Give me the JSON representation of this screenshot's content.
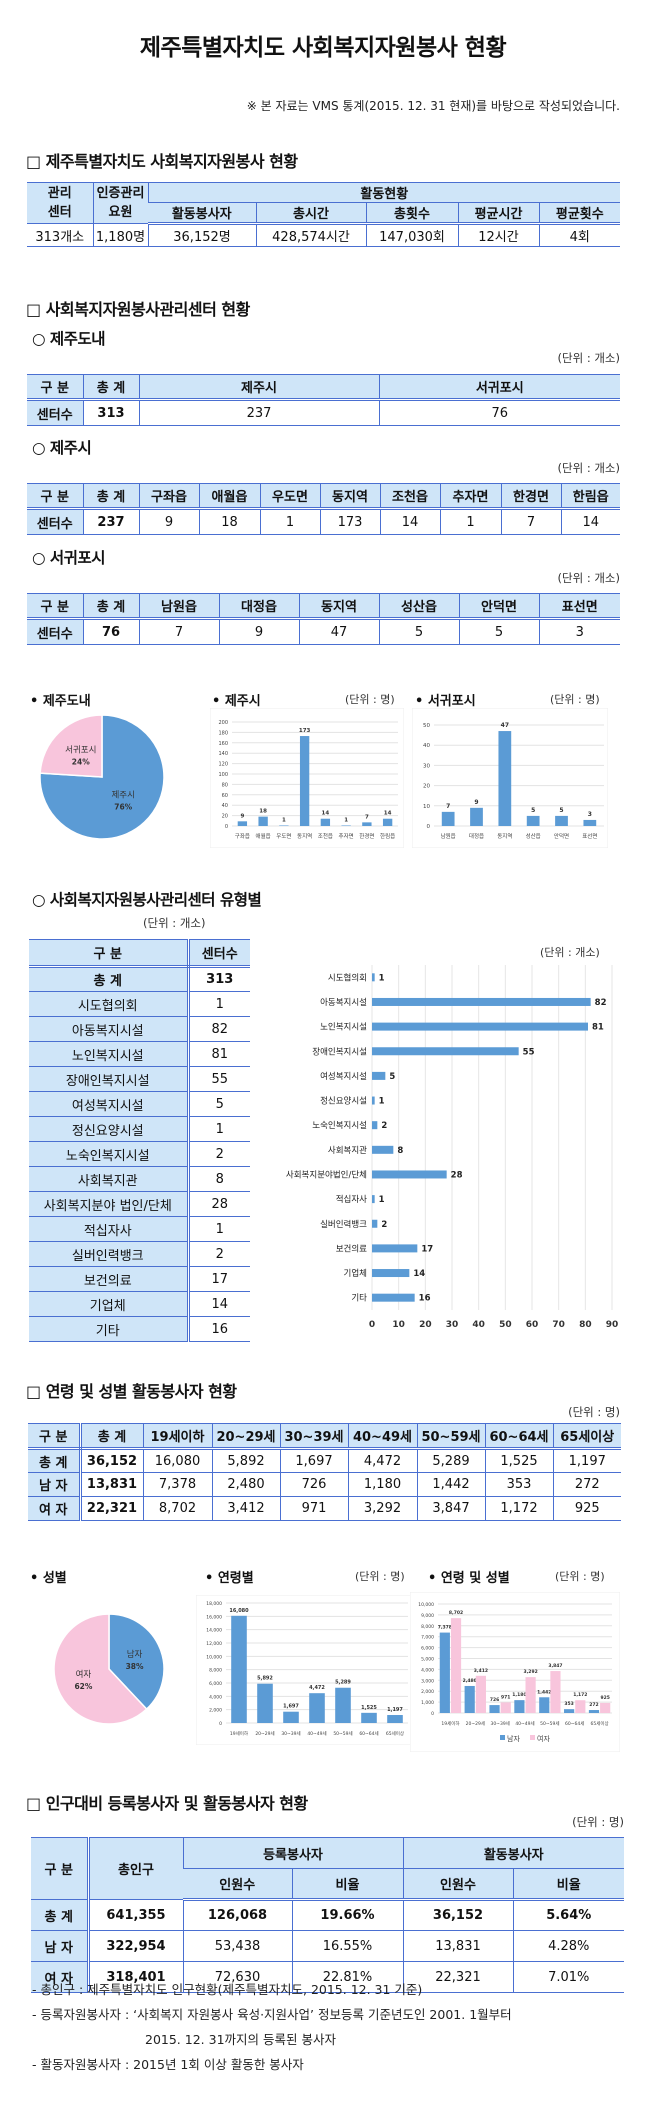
{
  "title": "제주특별자치도 사회복지자원봉사 현황",
  "note": "※ 본 자료는 VMS 통계(2015. 12. 31 현재)를 바탕으로 작성되었습니다.",
  "section1": {
    "heading": "□ 제주특별자치도 사회복지자원봉사 현황",
    "headers": {
      "center": "관리\n센터",
      "staff": "인증관리\n요원",
      "activity": "활동현황",
      "volunteers": "활동봉사자",
      "hours": "총시간",
      "count": "총횟수",
      "avg_hours": "평균시간",
      "avg_count": "평균횟수"
    },
    "values": [
      "313개소",
      "1,180명",
      "36,152명",
      "428,574시간",
      "147,030회",
      "12시간",
      "4회"
    ]
  },
  "section2": {
    "heading": "□ 사회복지자원봉사관리센터 현황",
    "jeju_do": {
      "heading": "○ 제주도내",
      "unit": "(단위 : 개소)",
      "headers": [
        "구 분",
        "총 계",
        "제주시",
        "서귀포시"
      ],
      "row": [
        "센터수",
        "313",
        "237",
        "76"
      ]
    },
    "jeju_si": {
      "heading": "○ 제주시",
      "unit": "(단위 : 개소)",
      "headers": [
        "구 분",
        "총 계",
        "구좌읍",
        "애월읍",
        "우도면",
        "동지역",
        "조천읍",
        "추자면",
        "한경면",
        "한림읍"
      ],
      "row": [
        "센터수",
        "237",
        "9",
        "18",
        "1",
        "173",
        "14",
        "1",
        "7",
        "14"
      ]
    },
    "seogwipo": {
      "heading": "○ 서귀포시",
      "unit": "(단위 : 개소)",
      "headers": [
        "구 분",
        "총 계",
        "남원읍",
        "대정읍",
        "동지역",
        "성산읍",
        "안덕면",
        "표선면"
      ],
      "row": [
        "센터수",
        "76",
        "7",
        "9",
        "47",
        "5",
        "5",
        "3"
      ]
    }
  },
  "section3": {
    "heading": "○ 사회복지자원봉사관리센터 유형별",
    "unit": "(단위 : 개소)",
    "headers": [
      "구    분",
      "센터수"
    ],
    "rows": [
      [
        "총    계",
        "313"
      ],
      [
        "시도협의회",
        "1"
      ],
      [
        "아동복지시설",
        "82"
      ],
      [
        "노인복지시설",
        "81"
      ],
      [
        "장애인복지시설",
        "55"
      ],
      [
        "여성복지시설",
        "5"
      ],
      [
        "정신요양시설",
        "1"
      ],
      [
        "노숙인복지시설",
        "2"
      ],
      [
        "사회복지관",
        "8"
      ],
      [
        "사회복지분야 법인/단체",
        "28"
      ],
      [
        "적십자사",
        "1"
      ],
      [
        "실버인력뱅크",
        "2"
      ],
      [
        "보건의료",
        "17"
      ],
      [
        "기업체",
        "14"
      ],
      [
        "기타",
        "16"
      ]
    ]
  },
  "section4": {
    "heading": "□ 연령 및 성별 활동봉사자 현황",
    "unit": "(단위 : 명)",
    "headers": [
      "구 분",
      "총 계",
      "19세이하",
      "20~29세",
      "30~39세",
      "40~49세",
      "50~59세",
      "60~64세",
      "65세이상"
    ],
    "rows": [
      [
        "총 계",
        "36,152",
        "16,080",
        "5,892",
        "1,697",
        "4,472",
        "5,289",
        "1,525",
        "1,197"
      ],
      [
        "남 자",
        "13,831",
        "7,378",
        "2,480",
        "726",
        "1,180",
        "1,442",
        "353",
        "272"
      ],
      [
        "여 자",
        "22,321",
        "8,702",
        "3,412",
        "971",
        "3,292",
        "3,847",
        "1,172",
        "925"
      ]
    ]
  },
  "section5": {
    "heading": "□ 인구대비 등록봉사자 및 활동봉사자 현황",
    "unit": "(단위 : 명)",
    "headers": {
      "category": "구 분",
      "population": "총인구",
      "registered": "등록봉사자",
      "active": "활동봉사자",
      "count": "인원수",
      "ratio": "비율"
    },
    "rows": [
      [
        "총 계",
        "641,355",
        "126,068",
        "19.66%",
        "36,152",
        "5.64%"
      ],
      [
        "남 자",
        "322,954",
        "53,438",
        "16.55%",
        "13,831",
        "4.28%"
      ],
      [
        "여 자",
        "318,401",
        "72,630",
        "22.81%",
        "22,321",
        "7.01%"
      ]
    ],
    "notes": [
      "- 총인구 : 제주특별자치도 인구현황(제주특별자치도, 2015. 12. 31 기준)",
      "- 등록자원봉사자 : ‘사회복지 자원봉사 육성·지원사업’ 정보등록 기준년도인 2001. 1월부터",
      "2015. 12. 31까지의 등록된 봉사자",
      "- 활동자원봉사자 : 2015년 1회 이상 활동한 봉사자"
    ]
  },
  "colors": {
    "blue": "#5b9bd5",
    "pink": "#f8c5dc",
    "border": "#4a6fd1",
    "header_bg": "#cfe5f8"
  },
  "chart_data": [
    {
      "id": "pie_region",
      "type": "pie",
      "title": "• 제주도내",
      "labels": [
        "제주시",
        "서귀포시"
      ],
      "values": [
        76,
        24
      ],
      "value_labels": [
        "76%",
        "24%"
      ]
    },
    {
      "id": "bar_jeju",
      "type": "bar",
      "title": "• 제주시",
      "unit": "(단위 : 명)",
      "categories": [
        "구좌읍",
        "애월읍",
        "우도면",
        "동지역",
        "조천읍",
        "추자면",
        "한경면",
        "한림읍"
      ],
      "values": [
        9,
        18,
        1,
        173,
        14,
        1,
        7,
        14
      ],
      "ylim": [
        0,
        200
      ],
      "ystep": 20,
      "grid": true
    },
    {
      "id": "bar_seogwipo",
      "type": "bar",
      "title": "• 서귀포시",
      "unit": "(단위 : 명)",
      "categories": [
        "남원읍",
        "대정읍",
        "동지역",
        "성산읍",
        "안덕면",
        "표선면"
      ],
      "values": [
        7,
        9,
        47,
        5,
        5,
        3
      ],
      "ylim": [
        0,
        50
      ],
      "ystep": 10,
      "grid": true
    },
    {
      "id": "hbar_type",
      "type": "bar",
      "orientation": "horizontal",
      "unit": "(단위 : 개소)",
      "categories": [
        "시도협의회",
        "아동복지시설",
        "노인복지시설",
        "장애인복지시설",
        "여성복지시설",
        "정신요양시설",
        "노숙인복지시설",
        "사회복지관",
        "사회복지분야법인/단체",
        "적십자사",
        "실버인력뱅크",
        "보건의료",
        "기업체",
        "기타"
      ],
      "values": [
        1,
        82,
        81,
        55,
        5,
        1,
        2,
        8,
        28,
        1,
        2,
        17,
        14,
        16
      ],
      "xlim": [
        0,
        90
      ],
      "xstep": 10,
      "grid": true
    },
    {
      "id": "pie_gender",
      "type": "pie",
      "title": "• 성별",
      "labels": [
        "남자",
        "여자"
      ],
      "values": [
        38,
        62
      ],
      "value_labels": [
        "38%",
        "62%"
      ]
    },
    {
      "id": "bar_age",
      "type": "bar",
      "title": "• 연령별",
      "unit": "(단위 : 명)",
      "categories": [
        "19세이하",
        "20~29세",
        "30~39세",
        "40~49세",
        "50~59세",
        "60~64세",
        "65세이상"
      ],
      "values": [
        16080,
        5892,
        1697,
        4472,
        5289,
        1525,
        1197
      ],
      "value_labels": [
        "16,080",
        "5,892",
        "1,697",
        "4,472",
        "5,289",
        "1,525",
        "1,197"
      ],
      "ylim": [
        0,
        18000
      ],
      "ystep": 2000,
      "grid": true
    },
    {
      "id": "bar_age_gender",
      "type": "bar",
      "title": "• 연령 및 성별",
      "unit": "(단위 : 명)",
      "categories": [
        "19세이하",
        "20~29세",
        "30~39세",
        "40~49세",
        "50~59세",
        "60~64세",
        "65세이상"
      ],
      "series": [
        {
          "name": "남자",
          "values": [
            7378,
            2480,
            726,
            1180,
            1442,
            353,
            272
          ],
          "value_labels": [
            "7,378",
            "2,480",
            "726",
            "1,180",
            "1,442",
            "353",
            "272"
          ]
        },
        {
          "name": "여자",
          "values": [
            8702,
            3412,
            971,
            3292,
            3847,
            1172,
            925
          ],
          "value_labels": [
            "8,702",
            "3,412",
            "971",
            "3,292",
            "3,847",
            "1,172",
            "925"
          ]
        }
      ],
      "ylim": [
        0,
        10000
      ],
      "ystep": 1000,
      "grid": true,
      "legend": "bottom"
    }
  ]
}
